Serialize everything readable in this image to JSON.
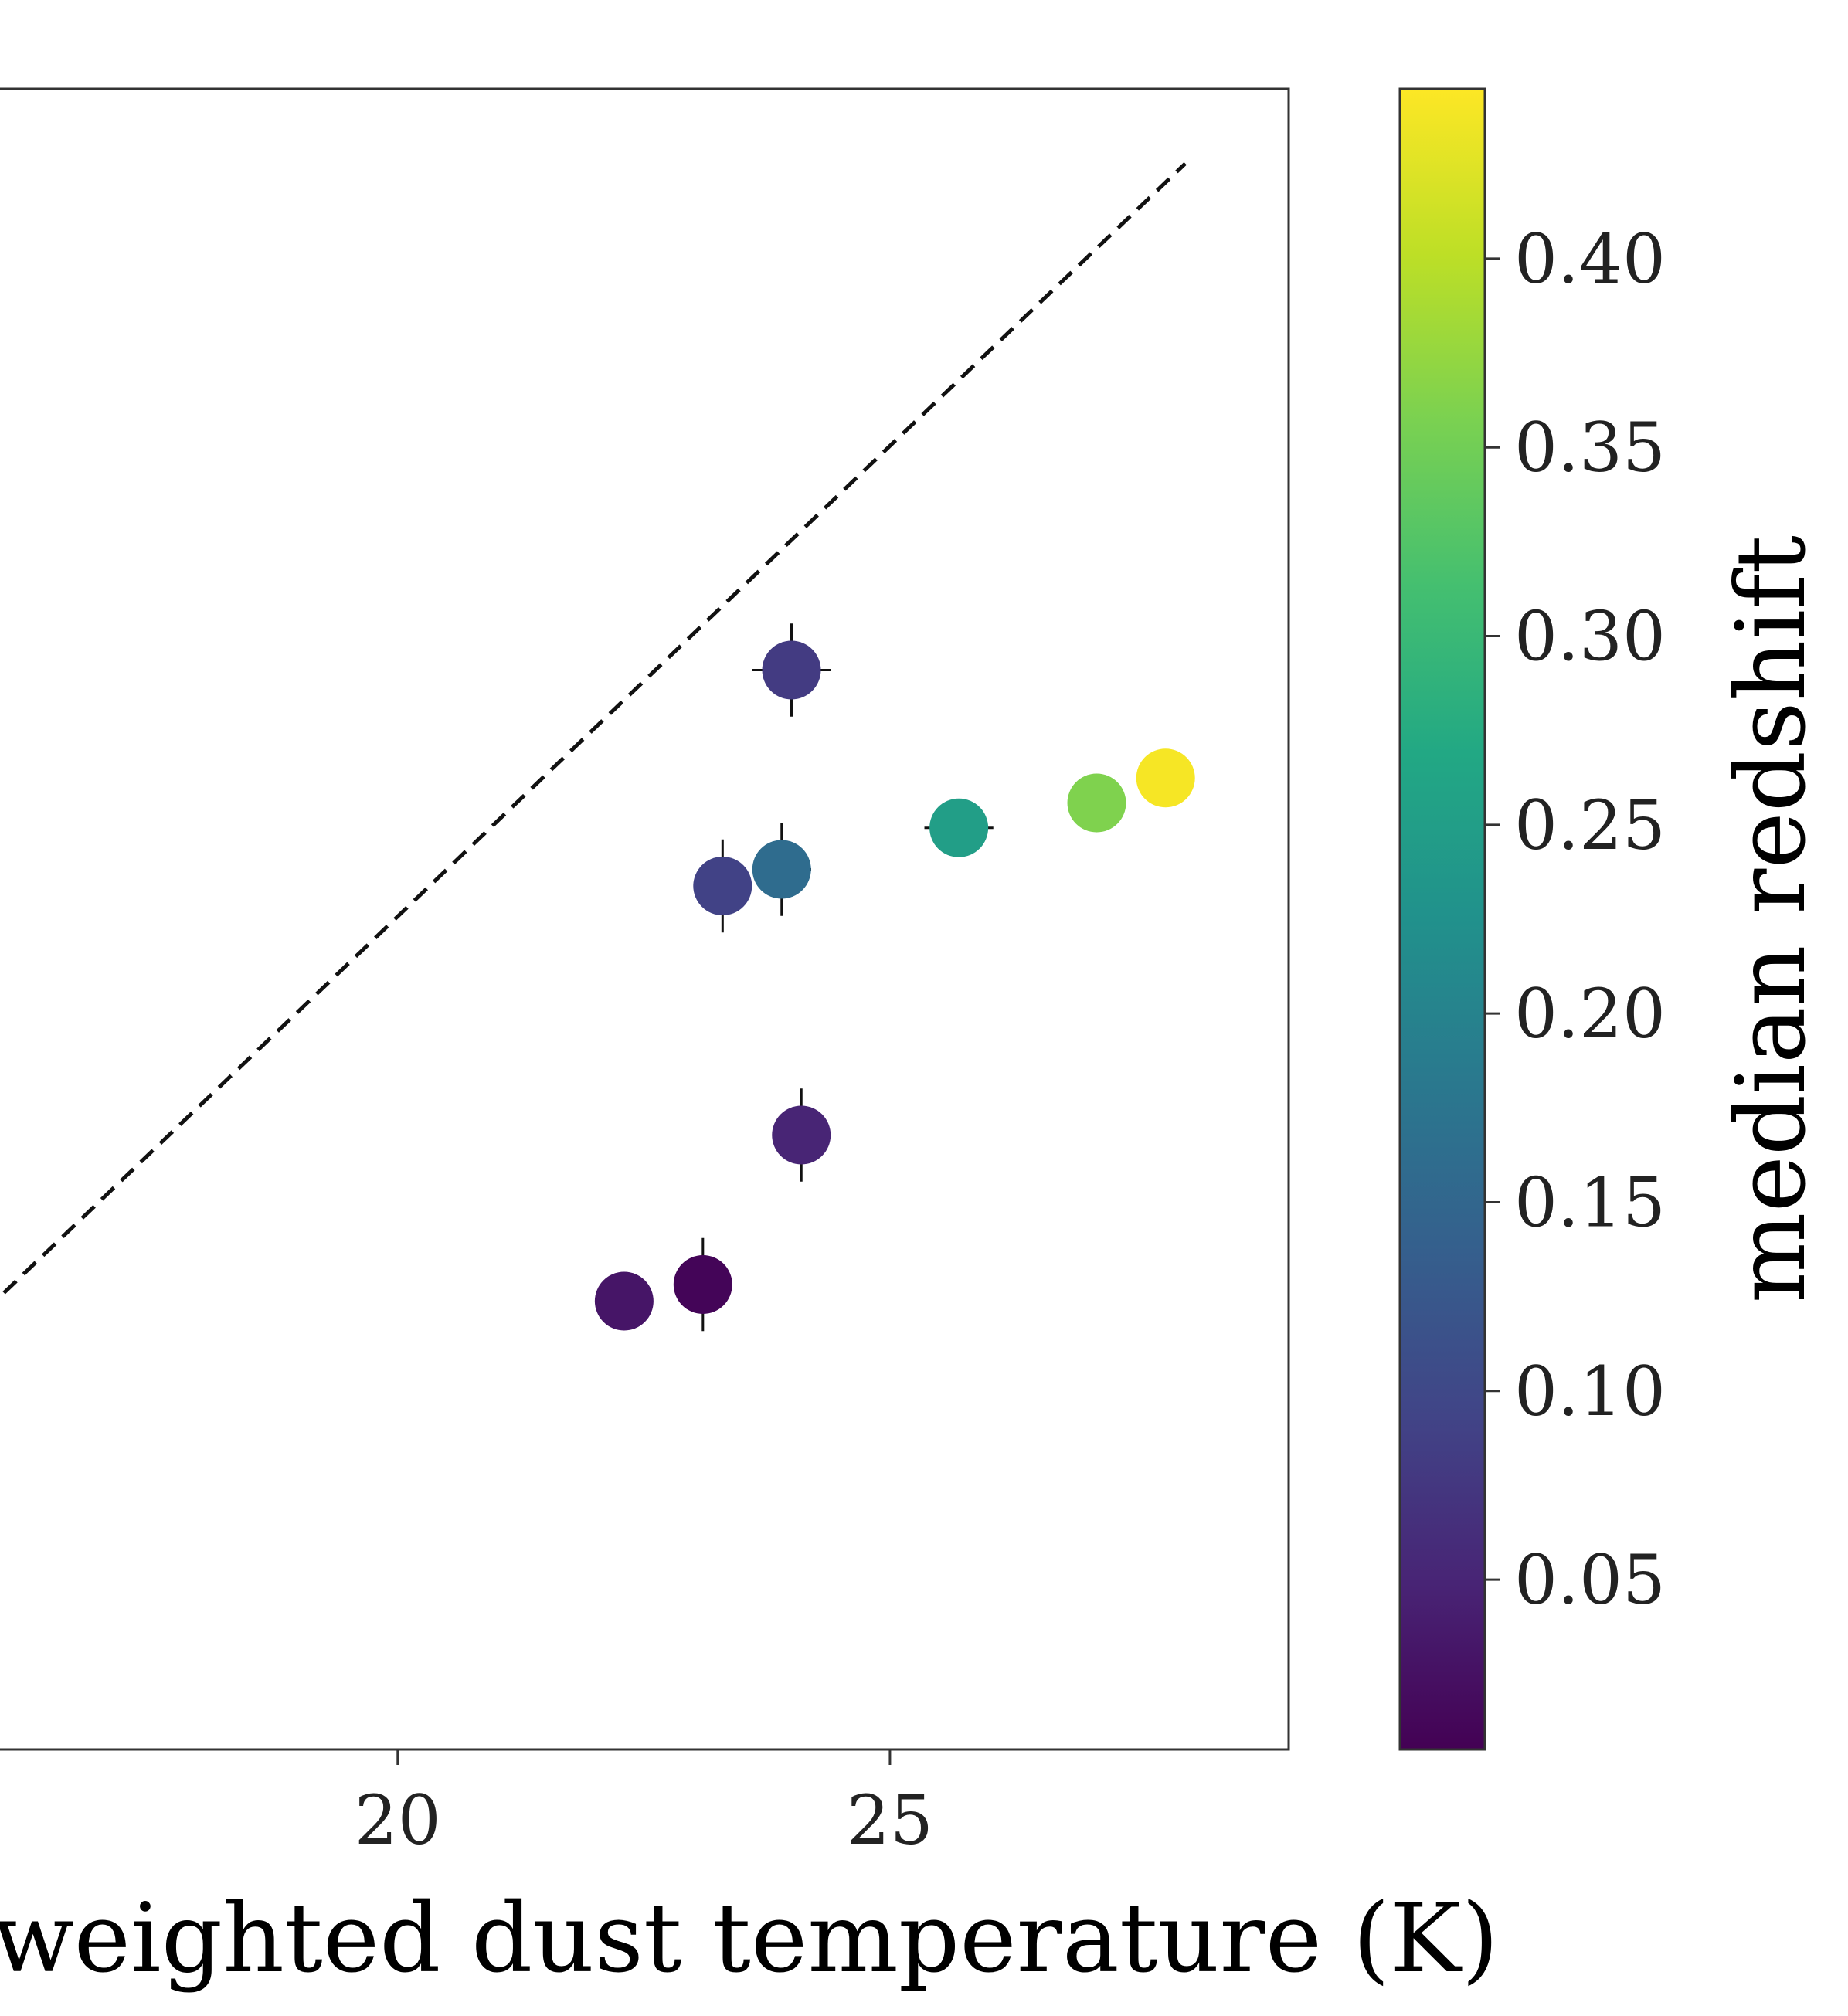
{
  "chart_data": {
    "type": "scatter",
    "title": "",
    "xlabel": "y weighted dust temperature (K)",
    "ylabel": "",
    "x_ticks": [
      20,
      25
    ],
    "x_tick_labels": [
      "20",
      "25"
    ],
    "xlim": [
      15.96,
      29.05
    ],
    "ylim": [
      0,
      10
    ],
    "grid": false,
    "reference_line": {
      "style": "dashed",
      "color": "#111111",
      "x": [
        16.0,
        28.0
      ],
      "y": [
        2.75,
        9.55
      ]
    },
    "points": [
      {
        "x": 24.0,
        "y": 6.5,
        "z": 0.08,
        "xerr": 0.4,
        "yerr": 0.28
      },
      {
        "x": 23.3,
        "y": 5.2,
        "z": 0.09,
        "xerr": 0.2,
        "yerr": 0.28
      },
      {
        "x": 23.9,
        "y": 5.3,
        "z": 0.16,
        "xerr": 0.3,
        "yerr": 0.28
      },
      {
        "x": 25.7,
        "y": 5.55,
        "z": 0.25,
        "xerr": 0.35,
        "yerr": 0.0
      },
      {
        "x": 27.1,
        "y": 5.7,
        "z": 0.36,
        "xerr": 0.0,
        "yerr": 0.0
      },
      {
        "x": 27.8,
        "y": 5.85,
        "z": 0.44,
        "xerr": 0.0,
        "yerr": 0.0
      },
      {
        "x": 24.1,
        "y": 3.7,
        "z": 0.05,
        "xerr": 0.0,
        "yerr": 0.28
      },
      {
        "x": 22.3,
        "y": 2.7,
        "z": 0.03,
        "xerr": 0.0,
        "yerr": 0.0
      },
      {
        "x": 23.1,
        "y": 2.8,
        "z": 0.01,
        "xerr": 0.0,
        "yerr": 0.28
      }
    ],
    "colorbar": {
      "label": "median redshift",
      "colormap": "viridis",
      "range": [
        0.005,
        0.445
      ],
      "ticks": [
        0.05,
        0.1,
        0.15,
        0.2,
        0.25,
        0.3,
        0.35,
        0.4
      ],
      "tick_labels": [
        "0.05",
        "0.10",
        "0.15",
        "0.20",
        "0.25",
        "0.30",
        "0.35",
        "0.40"
      ],
      "gradient_colors": [
        "#440154",
        "#482475",
        "#414487",
        "#355f8d",
        "#2a788e",
        "#21918c",
        "#22a884",
        "#44bf70",
        "#7ad151",
        "#bddf26",
        "#fde725"
      ]
    }
  }
}
